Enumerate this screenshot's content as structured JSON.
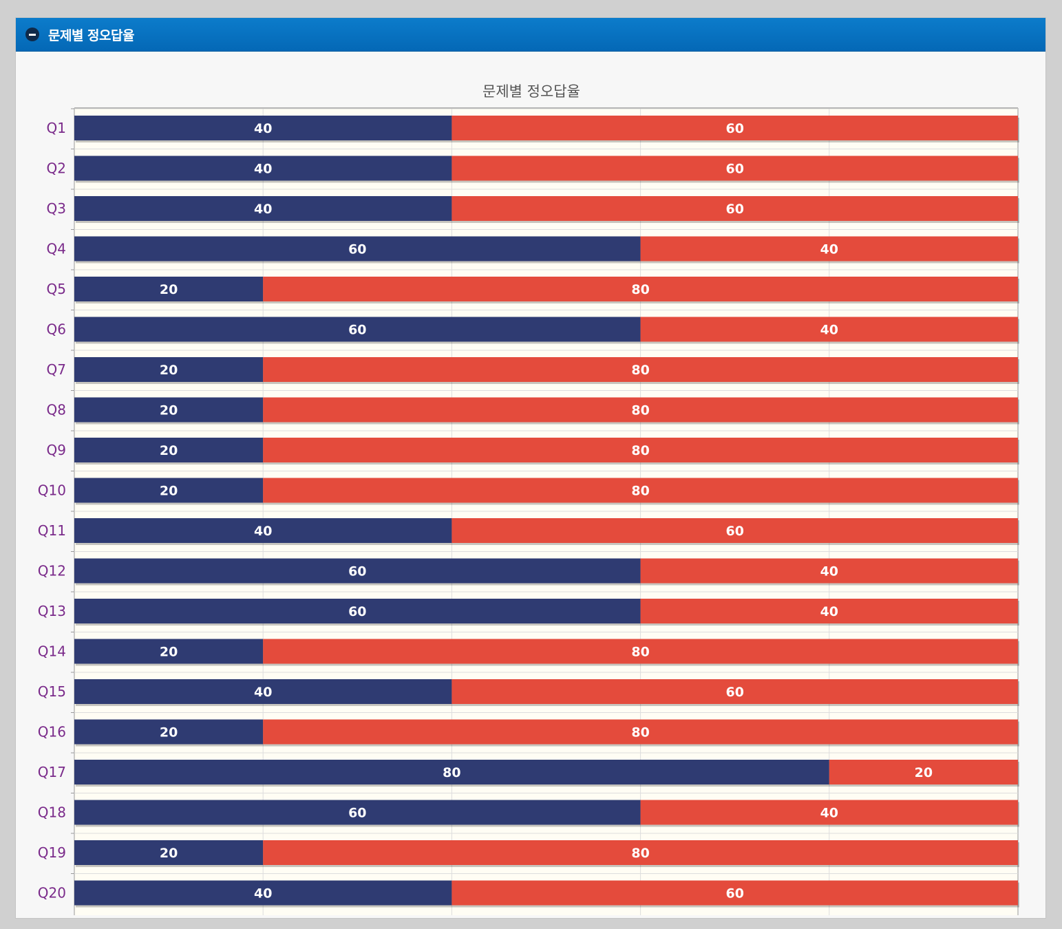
{
  "panel": {
    "title": "문제별 정오답율"
  },
  "colors": {
    "header": "#0570bf",
    "correct": "#2f3b72",
    "wrong": "#e44b3c",
    "category_text": "#7a2a8a"
  },
  "chart_data": {
    "type": "bar",
    "orientation": "horizontal",
    "stacked": true,
    "title": "문제별 정오답율",
    "xlim": [
      0,
      100
    ],
    "grid": true,
    "categories": [
      "Q1",
      "Q2",
      "Q3",
      "Q4",
      "Q5",
      "Q6",
      "Q7",
      "Q8",
      "Q9",
      "Q10",
      "Q11",
      "Q12",
      "Q13",
      "Q14",
      "Q15",
      "Q16",
      "Q17",
      "Q18",
      "Q19",
      "Q20"
    ],
    "series": [
      {
        "color": "#2f3b72",
        "values": [
          40,
          40,
          40,
          60,
          20,
          60,
          20,
          20,
          20,
          20,
          40,
          60,
          60,
          20,
          40,
          20,
          80,
          60,
          20,
          40
        ]
      },
      {
        "color": "#e44b3c",
        "values": [
          60,
          60,
          60,
          40,
          80,
          40,
          80,
          80,
          80,
          80,
          60,
          40,
          40,
          80,
          60,
          80,
          20,
          40,
          80,
          60
        ]
      }
    ]
  }
}
